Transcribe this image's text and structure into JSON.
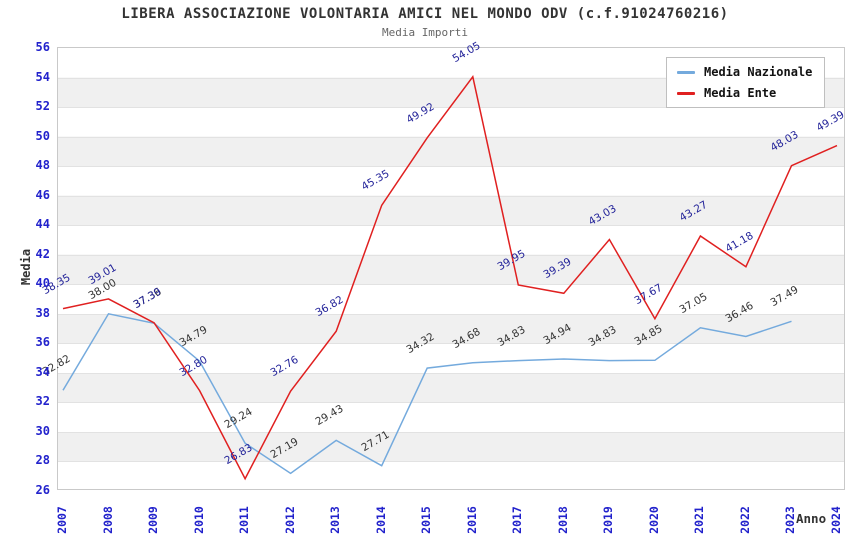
{
  "title": "LIBERA ASSOCIAZIONE VOLONTARIA AMICI NEL MONDO ODV (c.f.91024760216)",
  "subtitle": "Media Importi",
  "axes": {
    "y_label": "Media",
    "x_label": "Anno",
    "y_ticks": [
      56,
      54,
      52,
      50,
      48,
      46,
      44,
      42,
      40,
      38,
      36,
      34,
      32,
      30,
      28,
      26
    ],
    "x_ticks": [
      "2007",
      "2008",
      "2009",
      "2010",
      "2011",
      "2012",
      "2013",
      "2014",
      "2015",
      "2016",
      "2017",
      "2018",
      "2019",
      "2020",
      "2021",
      "2022",
      "2023",
      "2024"
    ],
    "tick_color": "#2222cc"
  },
  "legend": [
    {
      "label": "Media Nazionale",
      "color": "#74aadd"
    },
    {
      "label": "Media Ente",
      "color": "#e02020"
    }
  ],
  "chart_data": {
    "type": "line",
    "title": "LIBERA ASSOCIAZIONE VOLONTARIA AMICI NEL MONDO ODV (c.f.91024760216)",
    "subtitle": "Media Importi",
    "xlabel": "Anno",
    "ylabel": "Media",
    "x": [
      2007,
      2008,
      2009,
      2010,
      2011,
      2012,
      2013,
      2014,
      2015,
      2016,
      2017,
      2018,
      2019,
      2020,
      2021,
      2022,
      2023,
      2024
    ],
    "series": [
      {
        "name": "Media Nazionale",
        "color": "#74aadd",
        "label_color": "#333333",
        "values": [
          32.82,
          38.0,
          37.36,
          34.79,
          29.24,
          27.19,
          29.43,
          27.71,
          34.32,
          34.68,
          34.83,
          34.94,
          34.83,
          34.85,
          37.05,
          36.46,
          37.49,
          null
        ]
      },
      {
        "name": "Media Ente",
        "color": "#e02020",
        "label_color": "#222299",
        "values": [
          38.35,
          39.01,
          37.39,
          32.8,
          26.83,
          32.76,
          36.82,
          45.35,
          49.92,
          54.05,
          39.95,
          39.39,
          43.03,
          37.67,
          43.27,
          41.18,
          48.03,
          49.39
        ]
      }
    ],
    "ylim": [
      26,
      56
    ],
    "y_tick_step": 2,
    "grid": "horizontal-banded",
    "legend_position": "top-right",
    "point_labels": true
  }
}
